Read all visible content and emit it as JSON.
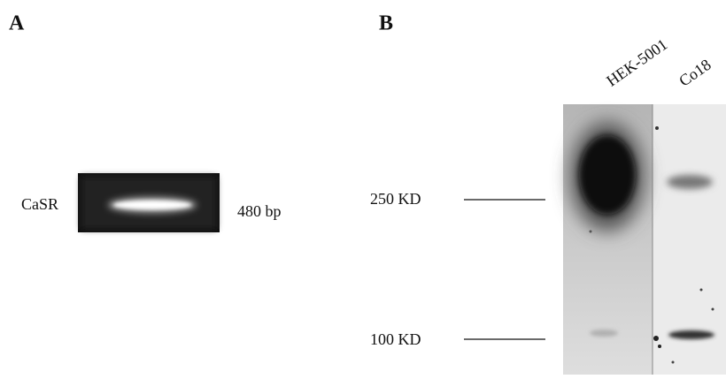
{
  "panels": [
    {
      "label": "A",
      "row_label": "CaSR",
      "band_size": "480 bp"
    },
    {
      "label": "B",
      "lanes": [
        "HEK-5001",
        "Co18"
      ],
      "markers": [
        "250 KD",
        "100 KD"
      ]
    }
  ]
}
